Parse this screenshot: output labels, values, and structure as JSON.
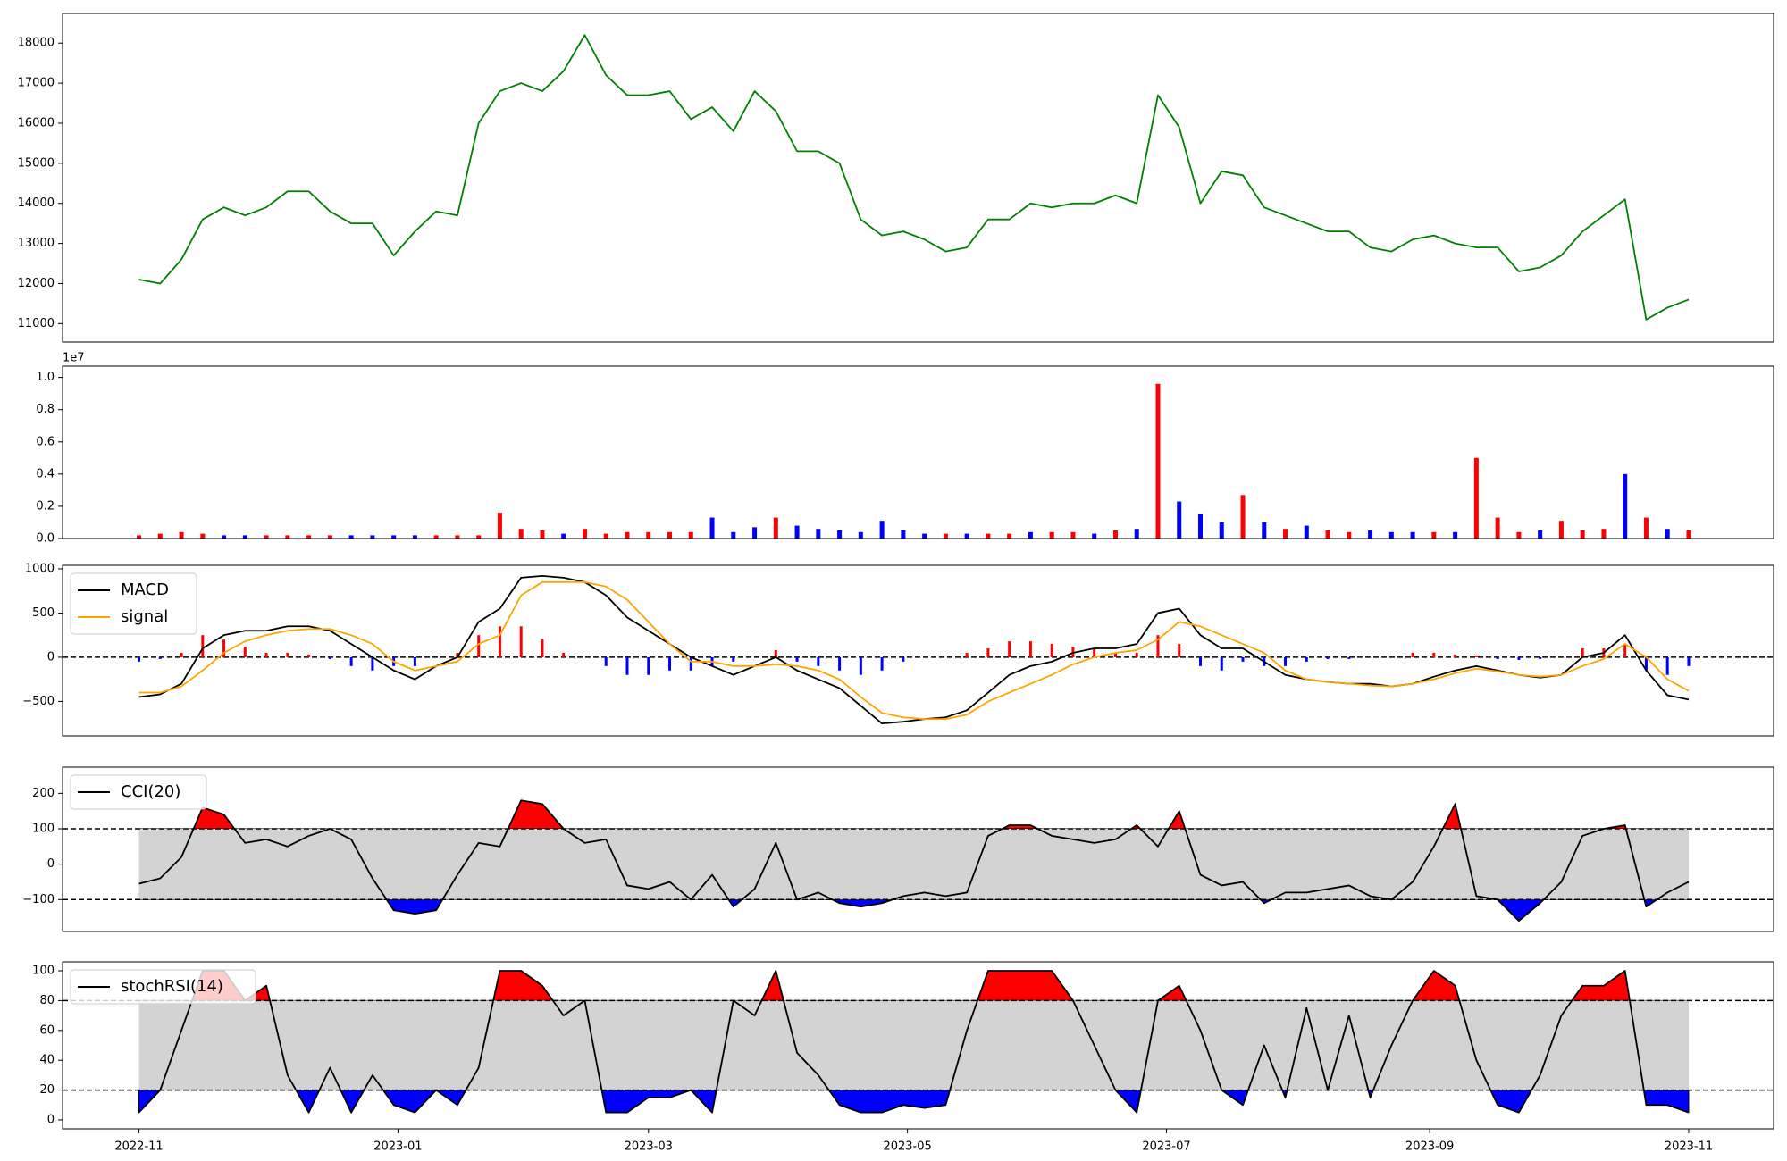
{
  "chart_data": [
    {
      "type": "line",
      "color": "green",
      "x": [
        0,
        5,
        10,
        15,
        20,
        25,
        30,
        35,
        40,
        45,
        50,
        55,
        60,
        65,
        70,
        75,
        80,
        85,
        90,
        95,
        100,
        105,
        110,
        115,
        120,
        125,
        130,
        135,
        140,
        145,
        150,
        155,
        160,
        165,
        170,
        175,
        180,
        185,
        190,
        195,
        200,
        205,
        210,
        215,
        220,
        225,
        230,
        235,
        240,
        245,
        250,
        255,
        260,
        265,
        270,
        275,
        280,
        285,
        290,
        295,
        300,
        305,
        310,
        315,
        320,
        325,
        330,
        335,
        340,
        345,
        350,
        355,
        360,
        365
      ],
      "values": [
        12100,
        12000,
        12600,
        13600,
        13900,
        13700,
        13900,
        14300,
        14300,
        13800,
        13500,
        13500,
        12700,
        13300,
        13800,
        13700,
        16000,
        16800,
        17000,
        16800,
        17300,
        18200,
        17200,
        16700,
        16700,
        16800,
        16100,
        16400,
        15800,
        16800,
        16300,
        15300,
        15300,
        15000,
        13600,
        13200,
        13300,
        13100,
        12800,
        12900,
        13600,
        13600,
        14000,
        13900,
        14000,
        14000,
        14200,
        14000,
        16700,
        15900,
        14000,
        14800,
        14700,
        13900,
        13700,
        13500,
        13300,
        13300,
        12900,
        12800,
        13100,
        13200,
        13000,
        12900,
        12900,
        12300,
        12400,
        12700,
        13300,
        13700,
        14100,
        11100,
        11400,
        11600
      ],
      "xlim": [
        -18,
        385
      ],
      "ylim": [
        10540,
        18740
      ],
      "yticks": [
        11000,
        12000,
        13000,
        14000,
        15000,
        16000,
        17000,
        18000
      ]
    },
    {
      "type": "bar",
      "offset_text": "1e7",
      "x": [
        0,
        5,
        10,
        15,
        20,
        25,
        30,
        35,
        40,
        45,
        50,
        55,
        60,
        65,
        70,
        75,
        80,
        85,
        90,
        95,
        100,
        105,
        110,
        115,
        120,
        125,
        130,
        135,
        140,
        145,
        150,
        155,
        160,
        165,
        170,
        175,
        180,
        185,
        190,
        195,
        200,
        205,
        210,
        215,
        220,
        225,
        230,
        235,
        240,
        245,
        250,
        255,
        260,
        265,
        270,
        275,
        280,
        285,
        290,
        295,
        300,
        305,
        310,
        315,
        320,
        325,
        330,
        335,
        340,
        345,
        350,
        355,
        360,
        365
      ],
      "values": [
        0.02,
        0.03,
        0.04,
        0.03,
        0.02,
        0.02,
        0.02,
        0.02,
        0.02,
        0.02,
        0.02,
        0.02,
        0.02,
        0.02,
        0.02,
        0.02,
        0.02,
        0.16,
        0.06,
        0.05,
        0.03,
        0.06,
        0.03,
        0.04,
        0.04,
        0.04,
        0.04,
        0.13,
        0.04,
        0.07,
        0.13,
        0.08,
        0.06,
        0.05,
        0.04,
        0.11,
        0.05,
        0.03,
        0.03,
        0.03,
        0.03,
        0.03,
        0.04,
        0.04,
        0.04,
        0.03,
        0.05,
        0.06,
        0.96,
        0.23,
        0.15,
        0.1,
        0.27,
        0.1,
        0.06,
        0.08,
        0.05,
        0.04,
        0.05,
        0.04,
        0.04,
        0.04,
        0.04,
        0.5,
        0.13,
        0.04,
        0.05,
        0.11,
        0.05,
        0.06,
        0.4,
        0.13,
        0.06,
        0.05
      ],
      "colors": [
        "red",
        "red",
        "red",
        "red",
        "blue",
        "blue",
        "red",
        "red",
        "red",
        "red",
        "blue",
        "blue",
        "blue",
        "blue",
        "red",
        "red",
        "red",
        "red",
        "red",
        "red",
        "blue",
        "red",
        "red",
        "red",
        "red",
        "red",
        "red",
        "blue",
        "blue",
        "blue",
        "red",
        "blue",
        "blue",
        "blue",
        "blue",
        "blue",
        "blue",
        "blue",
        "red",
        "blue",
        "red",
        "red",
        "blue",
        "red",
        "red",
        "blue",
        "red",
        "blue",
        "red",
        "blue",
        "blue",
        "blue",
        "red",
        "blue",
        "red",
        "blue",
        "red",
        "red",
        "blue",
        "blue",
        "blue",
        "red",
        "blue",
        "red",
        "red",
        "red",
        "blue",
        "red",
        "red",
        "red",
        "blue",
        "red",
        "blue",
        "red"
      ],
      "xlim": [
        -18,
        385
      ],
      "ylim": [
        0,
        1.07
      ],
      "yticks": [
        {
          "value": 0,
          "label": "0.0"
        },
        {
          "value": 0.2,
          "label": "0.2"
        },
        {
          "value": 0.4,
          "label": "0.4"
        },
        {
          "value": 0.6,
          "label": "0.6"
        },
        {
          "value": 0.8,
          "label": "0.8"
        },
        {
          "value": 1.0,
          "label": "1.0"
        }
      ]
    },
    {
      "type": "line",
      "zero_line": true,
      "legend": "upper left",
      "x": [
        0,
        5,
        10,
        15,
        20,
        25,
        30,
        35,
        40,
        45,
        50,
        55,
        60,
        65,
        70,
        75,
        80,
        85,
        90,
        95,
        100,
        105,
        110,
        115,
        120,
        125,
        130,
        135,
        140,
        145,
        150,
        155,
        160,
        165,
        170,
        175,
        180,
        185,
        190,
        195,
        200,
        205,
        210,
        215,
        220,
        225,
        230,
        235,
        240,
        245,
        250,
        255,
        260,
        265,
        270,
        275,
        280,
        285,
        290,
        295,
        300,
        305,
        310,
        315,
        320,
        325,
        330,
        335,
        340,
        345,
        350,
        355,
        360,
        365
      ],
      "series": [
        {
          "name": "MACD",
          "color": "black",
          "values": [
            -450,
            -420,
            -300,
            100,
            250,
            300,
            300,
            350,
            350,
            300,
            150,
            0,
            -150,
            -250,
            -100,
            0,
            400,
            550,
            900,
            920,
            900,
            850,
            700,
            450,
            300,
            150,
            0,
            -100,
            -200,
            -100,
            0,
            -150,
            -250,
            -350,
            -550,
            -750,
            -730,
            -700,
            -680,
            -600,
            -400,
            -200,
            -100,
            -50,
            50,
            100,
            100,
            150,
            500,
            550,
            250,
            100,
            100,
            -50,
            -200,
            -250,
            -280,
            -300,
            -300,
            -330,
            -300,
            -220,
            -150,
            -100,
            -150,
            -200,
            -230,
            -200,
            0,
            50,
            250,
            -150,
            -430,
            -480
          ]
        },
        {
          "name": "signal",
          "color": "orange",
          "values": [
            -400,
            -400,
            -330,
            -150,
            50,
            180,
            250,
            300,
            320,
            320,
            250,
            150,
            -50,
            -150,
            -100,
            -50,
            150,
            250,
            700,
            850,
            850,
            850,
            800,
            650,
            400,
            150,
            -50,
            -50,
            -100,
            -100,
            -80,
            -100,
            -150,
            -250,
            -450,
            -630,
            -680,
            -700,
            -700,
            -650,
            -500,
            -400,
            -300,
            -200,
            -80,
            0,
            50,
            80,
            200,
            400,
            350,
            250,
            150,
            50,
            -150,
            -250,
            -280,
            -300,
            -320,
            -330,
            -300,
            -250,
            -180,
            -130,
            -160,
            -200,
            -220,
            -200,
            -100,
            -20,
            150,
            0,
            -250,
            -380
          ]
        }
      ],
      "histogram": {
        "positive_color": "red",
        "negative_color": "blue",
        "values": [
          -50,
          -20,
          50,
          250,
          200,
          120,
          50,
          50,
          30,
          -20,
          -100,
          -150,
          -100,
          -100,
          0,
          50,
          250,
          350,
          350,
          200,
          50,
          0,
          -100,
          -200,
          -200,
          -150,
          -150,
          -100,
          -50,
          0,
          80,
          -50,
          -100,
          -150,
          -200,
          -150,
          -50,
          0,
          0,
          50,
          100,
          180,
          180,
          150,
          120,
          100,
          50,
          50,
          250,
          150,
          -100,
          -150,
          -50,
          -100,
          -100,
          -50,
          -20,
          -20,
          0,
          0,
          50,
          50,
          30,
          20,
          -20,
          -30,
          -20,
          0,
          100,
          100,
          150,
          -150,
          -200,
          -100
        ]
      },
      "xlim": [
        -18,
        385
      ],
      "ylim": [
        -890,
        1040
      ],
      "yticks": [
        {
          "value": -500,
          "label": "−500"
        },
        0,
        500,
        1000
      ]
    },
    {
      "type": "line",
      "legend": "upper left",
      "bands": [
        -100,
        100
      ],
      "band_color": "lightgray",
      "upper_fill": "red",
      "lower_fill": "blue",
      "x": [
        0,
        5,
        10,
        15,
        20,
        25,
        30,
        35,
        40,
        45,
        50,
        55,
        60,
        65,
        70,
        75,
        80,
        85,
        90,
        95,
        100,
        105,
        110,
        115,
        120,
        125,
        130,
        135,
        140,
        145,
        150,
        155,
        160,
        165,
        170,
        175,
        180,
        185,
        190,
        195,
        200,
        205,
        210,
        215,
        220,
        225,
        230,
        235,
        240,
        245,
        250,
        255,
        260,
        265,
        270,
        275,
        280,
        285,
        290,
        295,
        300,
        305,
        310,
        315,
        320,
        325,
        330,
        335,
        340,
        345,
        350,
        355,
        360,
        365
      ],
      "series": [
        {
          "name": "CCI(20)",
          "color": "black",
          "values": [
            -55,
            -40,
            20,
            160,
            140,
            60,
            70,
            50,
            80,
            100,
            70,
            -40,
            -130,
            -140,
            -130,
            -30,
            60,
            50,
            180,
            170,
            100,
            60,
            70,
            -60,
            -70,
            -50,
            -100,
            -30,
            -120,
            -70,
            60,
            -100,
            -80,
            -110,
            -120,
            -110,
            -90,
            -80,
            -90,
            -80,
            80,
            110,
            110,
            80,
            70,
            60,
            70,
            110,
            50,
            150,
            -30,
            -60,
            -50,
            -110,
            -80,
            -80,
            -70,
            -60,
            -90,
            -100,
            -50,
            50,
            170,
            -90,
            -100,
            -160,
            -110,
            -50,
            80,
            100,
            110,
            -120,
            -80,
            -50
          ]
        }
      ],
      "xlim": [
        -18,
        385
      ],
      "ylim": [
        -190,
        274
      ],
      "yticks": [
        {
          "value": -100,
          "label": "−100"
        },
        0,
        100,
        200
      ]
    },
    {
      "type": "line",
      "legend": "upper left",
      "bands": [
        20,
        80
      ],
      "band_color": "lightgray",
      "upper_fill": "red",
      "lower_fill": "blue",
      "x": [
        0,
        5,
        10,
        15,
        20,
        25,
        30,
        35,
        40,
        45,
        50,
        55,
        60,
        65,
        70,
        75,
        80,
        85,
        90,
        95,
        100,
        105,
        110,
        115,
        120,
        125,
        130,
        135,
        140,
        145,
        150,
        155,
        160,
        165,
        170,
        175,
        180,
        185,
        190,
        195,
        200,
        205,
        210,
        215,
        220,
        225,
        230,
        235,
        240,
        245,
        250,
        255,
        260,
        265,
        270,
        275,
        280,
        285,
        290,
        295,
        300,
        305,
        310,
        315,
        320,
        325,
        330,
        335,
        340,
        345,
        350,
        355,
        360,
        365
      ],
      "series": [
        {
          "name": "stochRSI(14)",
          "color": "black",
          "values": [
            5,
            20,
            60,
            100,
            100,
            80,
            90,
            30,
            5,
            35,
            5,
            30,
            10,
            5,
            20,
            10,
            35,
            100,
            100,
            90,
            70,
            80,
            5,
            5,
            15,
            15,
            20,
            5,
            80,
            70,
            100,
            45,
            30,
            10,
            5,
            5,
            10,
            8,
            10,
            60,
            100,
            100,
            100,
            100,
            80,
            50,
            20,
            5,
            80,
            90,
            60,
            20,
            10,
            50,
            15,
            75,
            20,
            70,
            15,
            50,
            80,
            100,
            90,
            40,
            10,
            5,
            30,
            70,
            90,
            90,
            100,
            10,
            10,
            5
          ]
        }
      ],
      "xlim": [
        -18,
        385
      ],
      "ylim": [
        -6,
        106
      ],
      "yticks": [
        0,
        20,
        40,
        60,
        80,
        100
      ],
      "xticks": [
        {
          "value": 0,
          "label": "2022-11"
        },
        {
          "value": 61,
          "label": "2023-01"
        },
        {
          "value": 120,
          "label": "2023-03"
        },
        {
          "value": 181,
          "label": "2023-05"
        },
        {
          "value": 242,
          "label": "2023-07"
        },
        {
          "value": 304,
          "label": "2023-09"
        },
        {
          "value": 365,
          "label": "2023-11"
        }
      ]
    }
  ]
}
